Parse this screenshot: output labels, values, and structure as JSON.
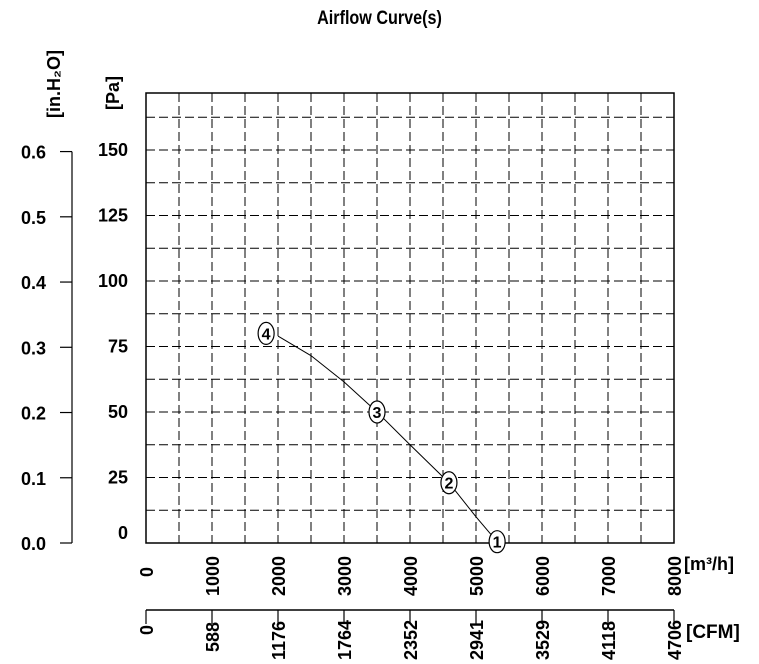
{
  "chart_data": {
    "type": "line",
    "title": "Airflow Curve(s)",
    "xlabel": "[m³/h]",
    "xlabel_secondary": "[CFM]",
    "ylabel": "[Pa]",
    "ylabel_secondary": "[in.H₂O]",
    "xlim": [
      0,
      8000
    ],
    "ylim": [
      0,
      170
    ],
    "grid": true,
    "x_ticks": [
      "0",
      "1000",
      "2000",
      "3000",
      "4000",
      "5000",
      "6000",
      "7000",
      "8000"
    ],
    "x_ticks_secondary": [
      "0",
      "588",
      "1176",
      "1764",
      "2352",
      "2941",
      "3529",
      "4118",
      "4706"
    ],
    "y_ticks": [
      "0",
      "25",
      "50",
      "75",
      "100",
      "125",
      "150"
    ],
    "y_ticks_secondary": [
      "0.0",
      "0.1",
      "0.2",
      "0.3",
      "0.4",
      "0.5",
      "0.6"
    ],
    "series": [
      {
        "x": [
          2000,
          2500,
          3000,
          3500,
          4000,
          4590,
          5000,
          5320
        ],
        "y": [
          79,
          71.5,
          61.5,
          50,
          37.5,
          23,
          10,
          0.5
        ],
        "color": "#000000"
      }
    ],
    "markers": [
      {
        "label": "1",
        "x": 5320,
        "y": 0.5
      },
      {
        "label": "2",
        "x": 4590,
        "y": 23
      },
      {
        "label": "3",
        "x": 3500,
        "y": 50
      },
      {
        "label": "4",
        "x": 1820,
        "y": 80
      }
    ]
  }
}
